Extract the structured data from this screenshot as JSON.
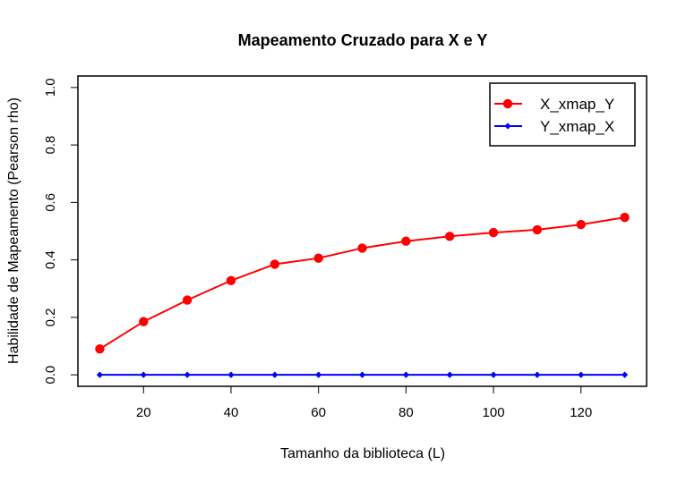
{
  "chart_data": {
    "type": "line",
    "title": "Mapeamento Cruzado para X e Y",
    "xlabel": "Tamanho da biblioteca (L)",
    "ylabel": "Habilidade de Mapeamento (Pearson rho)",
    "x": [
      10,
      20,
      30,
      40,
      50,
      60,
      70,
      80,
      90,
      100,
      110,
      120,
      130
    ],
    "xlim": [
      5,
      135
    ],
    "ylim": [
      -0.04,
      1.04
    ],
    "xticks": [
      20,
      40,
      60,
      80,
      100,
      120
    ],
    "yticks": [
      0.0,
      0.2,
      0.4,
      0.6,
      0.8,
      1.0
    ],
    "xtick_labels": [
      "20",
      "40",
      "60",
      "80",
      "100",
      "120"
    ],
    "ytick_labels": [
      "0.0",
      "0.2",
      "0.4",
      "0.6",
      "0.8",
      "1.0"
    ],
    "grid": false,
    "legend_position": "top-right",
    "series": [
      {
        "name": "X_xmap_Y",
        "color": "#ff0000",
        "marker": "circle",
        "values": [
          0.09,
          0.185,
          0.26,
          0.328,
          0.385,
          0.406,
          0.441,
          0.465,
          0.482,
          0.495,
          0.505,
          0.523,
          0.548
        ]
      },
      {
        "name": "Y_xmap_X",
        "color": "#0000ff",
        "marker": "diamond",
        "values": [
          0,
          0,
          0,
          0,
          0,
          0,
          0,
          0,
          0,
          0,
          0,
          0,
          0
        ]
      }
    ]
  }
}
